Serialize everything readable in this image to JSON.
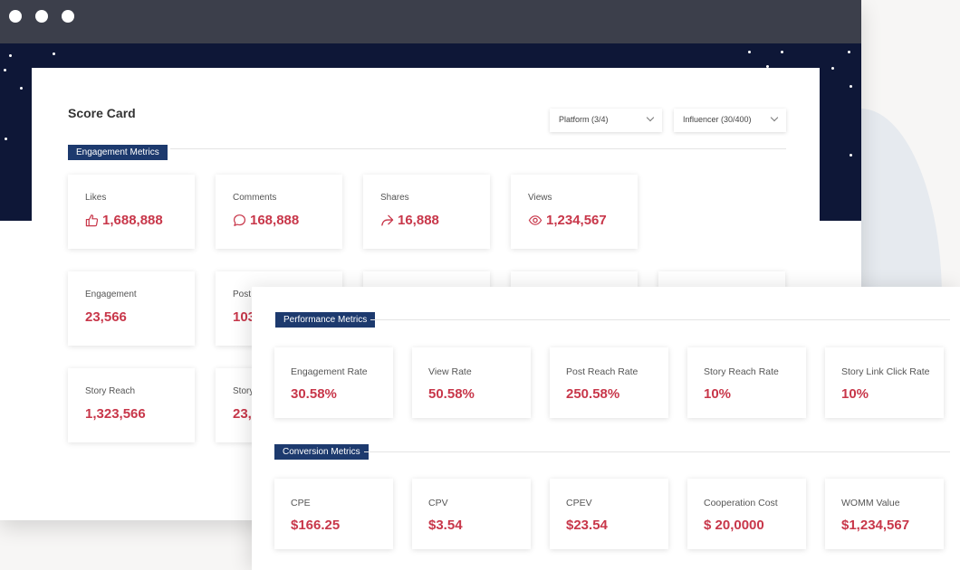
{
  "scorecard": {
    "title": "Score Card",
    "platform_filter": "Platform (3/4)",
    "influencer_filter": "Influencer (30/400)"
  },
  "engagement": {
    "section_label": "Engagement Metrics",
    "cards": [
      {
        "label": "Likes",
        "value": "1,688,888",
        "icon": "thumbs-up-icon"
      },
      {
        "label": "Comments",
        "value": "168,888",
        "icon": "comment-icon"
      },
      {
        "label": "Shares",
        "value": "16,888",
        "icon": "share-icon"
      },
      {
        "label": "Views",
        "value": "1,234,567",
        "icon": "eye-icon"
      }
    ],
    "row2": [
      {
        "label": "Engagement",
        "value": "23,566"
      },
      {
        "label": "Post",
        "value": "103"
      }
    ],
    "row3": [
      {
        "label": "Story Reach",
        "value": "1,323,566"
      },
      {
        "label": "Story",
        "value": "23,"
      }
    ]
  },
  "performance": {
    "section_label": "Performance Metrics",
    "cards": [
      {
        "label": "Engagement Rate",
        "value": "30.58%"
      },
      {
        "label": "View Rate",
        "value": "50.58%"
      },
      {
        "label": "Post Reach Rate",
        "value": "250.58%"
      },
      {
        "label": "Story Reach Rate",
        "value": "10%"
      },
      {
        "label": "Story Link Click Rate",
        "value": "10%"
      }
    ]
  },
  "conversion": {
    "section_label": "Conversion Metrics",
    "cards": [
      {
        "label": "CPE",
        "value": "$166.25"
      },
      {
        "label": "CPV",
        "value": "$3.54"
      },
      {
        "label": "CPEV",
        "value": "$23.54"
      },
      {
        "label": "Cooperation Cost",
        "value": "$ 20,0000"
      },
      {
        "label": "WOMM Value",
        "value": "$1,234,567"
      }
    ]
  },
  "colors": {
    "accent": "#c8374a",
    "section_bg": "#1d3a6e",
    "header_bg": "#0e1737",
    "titlebar": "#3c3f4b"
  }
}
